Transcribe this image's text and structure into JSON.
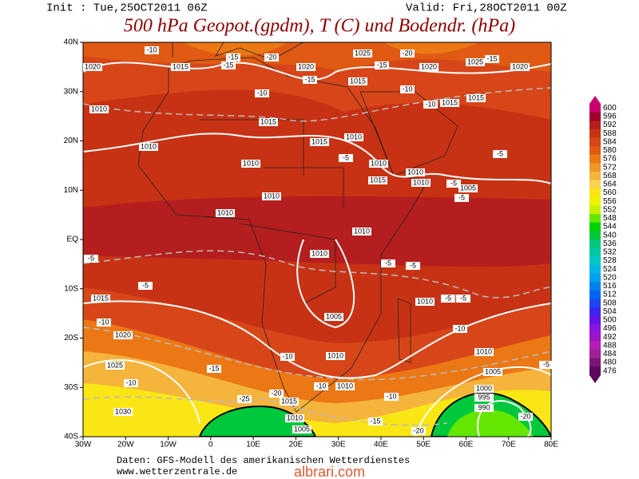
{
  "header": {
    "init": "Init : Tue,25OCT2011 06Z",
    "valid": "Valid: Fri,28OCT2011 00Z",
    "title": "500 hPa Geopot.(gpdm), T (C) und Bodendr. (hPa)"
  },
  "map": {
    "lat_labels": [
      "40N",
      "30N",
      "20N",
      "10N",
      "EQ",
      "10S",
      "20S",
      "30S",
      "40S"
    ],
    "lon_labels": [
      "30W",
      "20W",
      "10W",
      "0",
      "10E",
      "20E",
      "30E",
      "40E",
      "50E",
      "60E",
      "70E",
      "80E"
    ],
    "contour_labels": [
      "1020",
      "1010",
      "1015",
      "1025",
      "1020",
      "1015",
      "1025",
      "1015",
      "1020",
      "1020",
      "1015",
      "1010",
      "1015",
      "1015",
      "1010",
      "1010",
      "1010",
      "1015",
      "1010",
      "1010",
      "1005",
      "1010",
      "1010",
      "1010",
      "1010",
      "1015",
      "1010",
      "1005",
      "1010",
      "1010",
      "1020",
      "1025",
      "1030",
      "1010",
      "1005",
      "1000",
      "995",
      "990",
      "1015",
      "1010",
      "1005"
    ],
    "temp_labels": [
      "-10",
      "-15",
      "-20",
      "-15",
      "-20",
      "-15",
      "-10",
      "-10",
      "-15",
      "-10",
      "-5",
      "-5",
      "-5",
      "-5",
      "-5",
      "-5",
      "-5",
      "-5",
      "-5",
      "-5",
      "-10",
      "-10",
      "-15",
      "-10",
      "-10",
      "-15",
      "-20",
      "-25",
      "-10",
      "-15",
      "-20",
      "-20",
      "-10",
      "-5"
    ]
  },
  "colorbar": {
    "levels": [
      600,
      596,
      592,
      588,
      584,
      580,
      576,
      572,
      568,
      564,
      560,
      556,
      552,
      548,
      544,
      540,
      536,
      532,
      528,
      524,
      520,
      516,
      512,
      508,
      504,
      500,
      496,
      492,
      488,
      484,
      480,
      476
    ],
    "colors": [
      "#c8006e",
      "#a00028",
      "#b41e1e",
      "#c83214",
      "#d74619",
      "#e05a14",
      "#eb7814",
      "#f09628",
      "#f5b43c",
      "#fad250",
      "#fae614",
      "#f0f000",
      "#c8f000",
      "#64e600",
      "#00d200",
      "#00c83c",
      "#00c878",
      "#00c8a0",
      "#00c8c8",
      "#00b4e6",
      "#00a0f0",
      "#0082f0",
      "#0064f0",
      "#1e46f0",
      "#3c28f0",
      "#6414e6",
      "#8c14dc",
      "#a014c8",
      "#b41eb4",
      "#a01e96",
      "#7d1478",
      "#5a0a5a"
    ]
  },
  "footer": {
    "source": "Daten: GFS-Modell des amerikanischen Wetterdienstes",
    "site": "www.wetterzentrale.de",
    "watermark": "albrari.com"
  }
}
